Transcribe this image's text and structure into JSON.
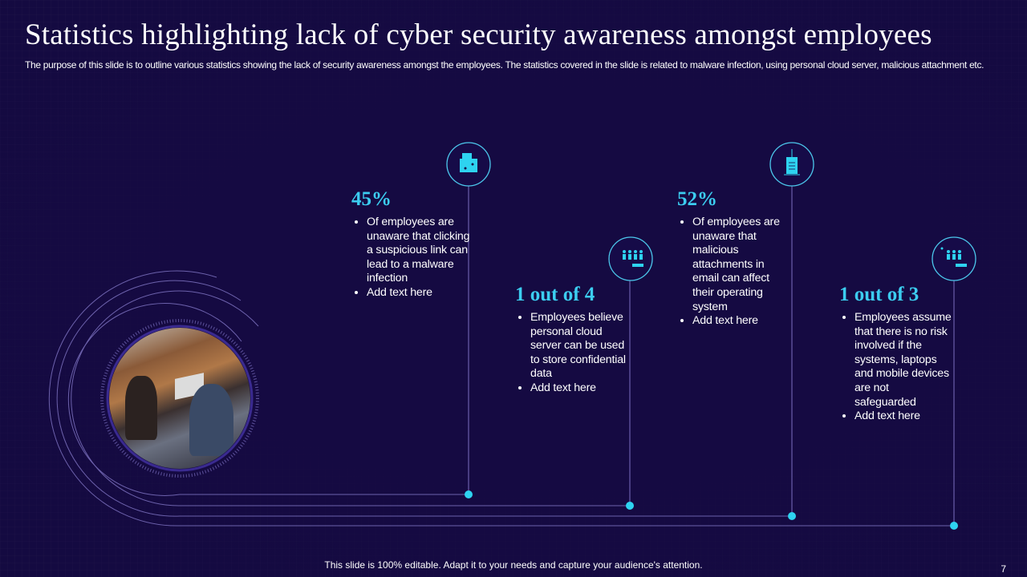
{
  "title": "Statistics highlighting lack of cyber security awareness amongst employees",
  "subtitle": "The purpose of this slide is to outline various statistics showing the lack of security awareness amongst the employees. The statistics covered in the slide is related to malware infection, using personal cloud server, malicious attachment etc.",
  "accent_color": "#3ccdf0",
  "background_color": "#140a40",
  "stats": [
    {
      "value": "45%",
      "icon": "malware-document-icon",
      "bullets": [
        "Of employees are unaware that clicking a suspicious link can lead to a malware infection",
        "Add text here"
      ]
    },
    {
      "value": "1 out of 4",
      "icon": "employees-cloud-icon",
      "bullets": [
        "Employees believe personal cloud server can be used to store confidential data",
        "Add text here"
      ]
    },
    {
      "value": "52%",
      "icon": "email-attachment-icon",
      "bullets": [
        "Of employees are unaware that malicious attachments in email can affect their operating system",
        "Add text here"
      ]
    },
    {
      "value": "1 out of 3",
      "icon": "employees-devices-icon",
      "bullets": [
        "Employees assume that there is no risk involved if the systems, laptops and mobile devices are not safeguarded",
        "Add text here"
      ]
    }
  ],
  "footer": "This slide is 100% editable. Adapt it to your needs and capture your audience's attention.",
  "page_number": "7"
}
